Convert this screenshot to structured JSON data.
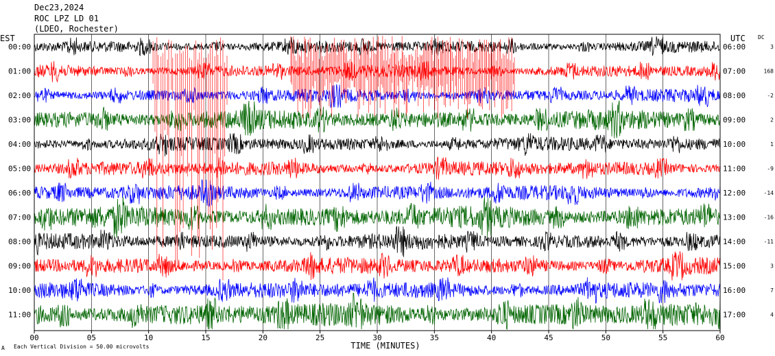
{
  "header": {
    "date": "Dec23,2024",
    "station": "ROC LPZ LD 01",
    "network": "(LDEO, Rochester)",
    "left_zone": "EST",
    "right_zone": "UTC",
    "dc_label": "DC"
  },
  "footer": {
    "scale_note": "Each Vertical Division =   50.00 microvolts",
    "scale_mark": "A"
  },
  "colors": {
    "cycle": [
      "#000000",
      "#ff0000",
      "#0000ff",
      "#006400"
    ],
    "frame": "#000000",
    "grid": "#000000"
  },
  "chart_data": {
    "type": "line",
    "title": "",
    "xlabel": "TIME (MINUTES)",
    "ylabel": "",
    "xlim": [
      0,
      60
    ],
    "x_ticks": [
      "00",
      "05",
      "10",
      "15",
      "20",
      "25",
      "30",
      "35",
      "40",
      "45",
      "50",
      "55",
      "60"
    ],
    "x_tick_values": [
      0,
      5,
      10,
      15,
      20,
      25,
      30,
      35,
      40,
      45,
      50,
      55,
      60
    ],
    "rows": [
      {
        "est": "00:00",
        "utc": "06:00",
        "dc": "3"
      },
      {
        "est": "01:00",
        "utc": "07:00",
        "dc": "168"
      },
      {
        "est": "02:00",
        "utc": "08:00",
        "dc": "-2"
      },
      {
        "est": "03:00",
        "utc": "09:00",
        "dc": "2"
      },
      {
        "est": "04:00",
        "utc": "10:00",
        "dc": "1"
      },
      {
        "est": "05:00",
        "utc": "11:00",
        "dc": "-9"
      },
      {
        "est": "06:00",
        "utc": "12:00",
        "dc": "-14"
      },
      {
        "est": "07:00",
        "utc": "13:00",
        "dc": "-16"
      },
      {
        "est": "08:00",
        "utc": "14:00",
        "dc": "-11"
      },
      {
        "est": "09:00",
        "utc": "15:00",
        "dc": "3"
      },
      {
        "est": "10:00",
        "utc": "16:00",
        "dc": "7"
      },
      {
        "est": "11:00",
        "utc": "17:00",
        "dc": "4"
      }
    ],
    "grid": true
  }
}
